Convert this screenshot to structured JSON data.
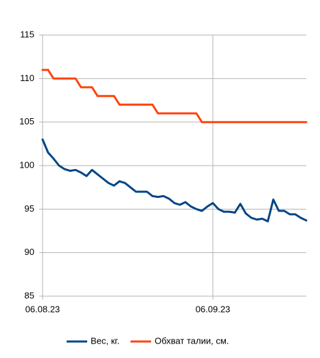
{
  "chart_data": {
    "type": "line",
    "categories": [
      "06.08.23",
      null,
      null,
      null,
      null,
      null,
      null,
      null,
      null,
      null,
      null,
      null,
      null,
      null,
      null,
      null,
      null,
      null,
      null,
      null,
      null,
      null,
      null,
      null,
      null,
      null,
      null,
      null,
      null,
      null,
      null,
      "06.09.23",
      null,
      null,
      null,
      null,
      null,
      null,
      null,
      null,
      null,
      null,
      null,
      null,
      null,
      null,
      null,
      null,
      null
    ],
    "series": [
      {
        "name": "Вес, кг.",
        "color": "#004586",
        "values": [
          103,
          101.5,
          100.8,
          100,
          99.6,
          99.4,
          99.5,
          99.2,
          98.8,
          99.5,
          99,
          98.5,
          98,
          97.7,
          98.2,
          98,
          97.5,
          97,
          97,
          97,
          96.5,
          96.4,
          96.5,
          96.2,
          95.7,
          95.5,
          95.8,
          95.3,
          95,
          94.8,
          95.3,
          95.7,
          95,
          94.7,
          94.7,
          94.6,
          95.6,
          94.5,
          94,
          93.8,
          93.9,
          93.6,
          96.1,
          94.8,
          94.8,
          94.4,
          94.4,
          94,
          93.7
        ]
      },
      {
        "name": "Обхват талии, см.",
        "color": "#ff420e",
        "values": [
          111,
          111,
          110,
          110,
          110,
          110,
          110,
          109,
          109,
          109,
          108,
          108,
          108,
          108,
          107,
          107,
          107,
          107,
          107,
          107,
          107,
          106,
          106,
          106,
          106,
          106,
          106,
          106,
          106,
          105,
          105,
          105,
          105,
          105,
          105,
          105,
          105,
          105,
          105,
          105,
          105,
          105,
          105,
          105,
          105,
          105,
          105,
          105,
          105
        ]
      }
    ],
    "ylim": [
      85,
      115
    ],
    "yticks": [
      85,
      90,
      95,
      100,
      105,
      110,
      115
    ],
    "grid": true,
    "legend": "bottom"
  }
}
